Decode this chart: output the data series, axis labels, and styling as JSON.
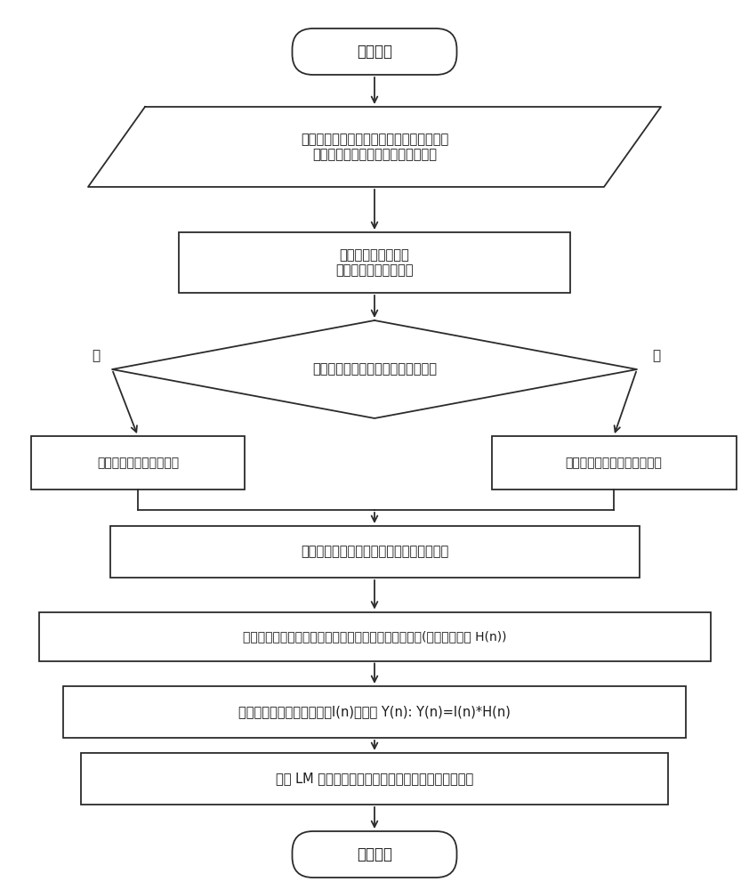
{
  "bg_color": "#ffffff",
  "line_color": "#2b2b2b",
  "fill_color": "#ffffff",
  "font_color": "#1a1a1a",
  "start_text": "仿真开始",
  "input_text": "输入激光测高仪硬件参数、飞行参数、大气\n与地表的光学参数以及地表高度模型",
  "divide_text": "划分三角单元并确定\n三角单元高度模型类型",
  "diamond_text": "三角单元高度模型类型是连续的吗？",
  "left_text": "以时间单元划分三角单元",
  "right_text": "确定整个三角单元的时间单元",
  "calc_text": "计算每个三角单元返回光子数随时间的分布",
  "accum_text": "累加获得光斑内所有三角单元返回光子数随时间的分布(单位样值响应 H(n))",
  "conv_text": "利用卷积和求得系统对激励I(n)的响应 Y(n): Y(n)=I(n)*H(n)",
  "lm_text": "利用 LM 方法拟合多模高斯回波，计算植被有效面积比",
  "end_text": "仿真结束",
  "yes_label": "是",
  "no_label": "否"
}
